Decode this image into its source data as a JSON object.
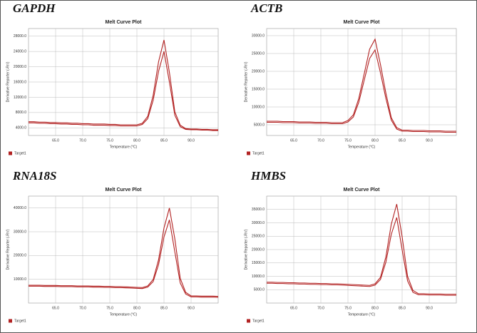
{
  "chart_data": [
    {
      "type": "line",
      "panel_label": "GAPDH",
      "title": "Melt Curve Plot",
      "x_label": "Temperature (°C)",
      "y_label": "Derivative Reporter (-Rn')",
      "x": [
        60,
        61,
        62,
        63,
        64,
        65,
        66,
        67,
        68,
        69,
        70,
        71,
        72,
        73,
        74,
        75,
        76,
        77,
        78,
        79,
        80,
        81,
        82,
        83,
        84,
        85,
        86,
        87,
        88,
        89,
        90,
        91,
        92,
        93,
        94,
        95
      ],
      "series": [
        {
          "name": "Target1",
          "color": "#b22222",
          "values": [
            5600,
            5600,
            5500,
            5500,
            5400,
            5400,
            5300,
            5300,
            5200,
            5200,
            5100,
            5100,
            5000,
            5000,
            5000,
            4900,
            4900,
            4800,
            4800,
            4800,
            4800,
            5200,
            7000,
            12500,
            21300,
            27000,
            18500,
            8200,
            4700,
            3800,
            3700,
            3700,
            3600,
            3600,
            3500,
            3500
          ]
        },
        {
          "color": "#b22222",
          "values": [
            5300,
            5300,
            5200,
            5200,
            5100,
            5100,
            5000,
            5000,
            4900,
            4900,
            4800,
            4800,
            4700,
            4700,
            4700,
            4600,
            4600,
            4500,
            4500,
            4500,
            4500,
            4900,
            6400,
            11200,
            18800,
            24000,
            16000,
            7300,
            4300,
            3600,
            3500,
            3500,
            3400,
            3400,
            3300,
            3300
          ]
        }
      ],
      "xlim": [
        60,
        95
      ],
      "xticks": [
        {
          "value": 65,
          "label": "65.0"
        },
        {
          "value": 70,
          "label": "70.0"
        },
        {
          "value": 75,
          "label": "75.0"
        },
        {
          "value": 80,
          "label": "80.0"
        },
        {
          "value": 85,
          "label": "85.0"
        },
        {
          "value": 90,
          "label": "90.0"
        }
      ],
      "ylim": [
        2000,
        30000
      ],
      "yticks": [
        {
          "value": 4000,
          "label": "4000.0"
        },
        {
          "value": 8000,
          "label": "8000.0"
        },
        {
          "value": 12000,
          "label": "12000.0"
        },
        {
          "value": 16000,
          "label": "16000.0"
        },
        {
          "value": 20000,
          "label": "20000.0"
        },
        {
          "value": 24000,
          "label": "24000.0"
        },
        {
          "value": 28000,
          "label": "28000.0"
        }
      ],
      "grid": true
    },
    {
      "type": "line",
      "panel_label": "ACTB",
      "title": "Melt Curve Plot",
      "x_label": "Temperature (°C)",
      "y_label": "Derivative Reporter (-Rn')",
      "x": [
        60,
        61,
        62,
        63,
        64,
        65,
        66,
        67,
        68,
        69,
        70,
        71,
        72,
        73,
        74,
        75,
        76,
        77,
        78,
        79,
        80,
        81,
        82,
        83,
        84,
        85,
        86,
        87,
        88,
        89,
        90,
        91,
        92,
        93,
        94,
        95
      ],
      "series": [
        {
          "name": "Target1",
          "color": "#b22222",
          "values": [
            6000,
            6000,
            6000,
            5900,
            5900,
            5900,
            5800,
            5800,
            5800,
            5700,
            5700,
            5700,
            5600,
            5600,
            5600,
            6200,
            7800,
            12400,
            19300,
            26200,
            29000,
            21900,
            13900,
            7000,
            4200,
            3500,
            3500,
            3400,
            3400,
            3400,
            3300,
            3300,
            3300,
            3200,
            3200,
            3200
          ]
        },
        {
          "color": "#b22222",
          "values": [
            5700,
            5700,
            5700,
            5600,
            5600,
            5600,
            5500,
            5500,
            5500,
            5400,
            5400,
            5400,
            5300,
            5300,
            5300,
            5800,
            7200,
            11300,
            17500,
            23600,
            26000,
            19600,
            12400,
            6300,
            3800,
            3200,
            3200,
            3100,
            3100,
            3100,
            3000,
            3000,
            3000,
            2900,
            2900,
            2900
          ]
        }
      ],
      "xlim": [
        60,
        95
      ],
      "xticks": [
        {
          "value": 65,
          "label": "65.0"
        },
        {
          "value": 70,
          "label": "70.0"
        },
        {
          "value": 75,
          "label": "75.0"
        },
        {
          "value": 80,
          "label": "80.0"
        },
        {
          "value": 85,
          "label": "85.0"
        },
        {
          "value": 90,
          "label": "90.0"
        }
      ],
      "ylim": [
        2000,
        32000
      ],
      "yticks": [
        {
          "value": 5000,
          "label": "5000.0"
        },
        {
          "value": 10000,
          "label": "10000.0"
        },
        {
          "value": 15000,
          "label": "15000.0"
        },
        {
          "value": 20000,
          "label": "20000.0"
        },
        {
          "value": 25000,
          "label": "25000.0"
        },
        {
          "value": 30000,
          "label": "30000.0"
        }
      ],
      "grid": true
    },
    {
      "type": "line",
      "panel_label": "RNA18S",
      "title": "Melt Curve Plot",
      "x_label": "Temperature (°C)",
      "y_label": "Derivative Reporter (-Rn')",
      "x": [
        60,
        61,
        62,
        63,
        64,
        65,
        66,
        67,
        68,
        69,
        70,
        71,
        72,
        73,
        74,
        75,
        76,
        77,
        78,
        79,
        80,
        81,
        82,
        83,
        84,
        85,
        86,
        87,
        88,
        89,
        90,
        91,
        92,
        93,
        94,
        95
      ],
      "series": [
        {
          "name": "Target1",
          "color": "#b22222",
          "values": [
            7500,
            7500,
            7500,
            7400,
            7400,
            7400,
            7300,
            7300,
            7300,
            7200,
            7200,
            7200,
            7100,
            7100,
            7000,
            7000,
            6900,
            6900,
            6800,
            6700,
            6600,
            6500,
            7200,
            9900,
            18200,
            31600,
            40000,
            27000,
            10400,
            4500,
            3000,
            3000,
            2900,
            2900,
            2900,
            2800
          ]
        },
        {
          "color": "#b22222",
          "values": [
            7100,
            7100,
            7100,
            7000,
            7000,
            7000,
            6900,
            6900,
            6900,
            6800,
            6800,
            6800,
            6700,
            6700,
            6600,
            6600,
            6500,
            6500,
            6400,
            6300,
            6200,
            6100,
            6700,
            9000,
            16200,
            27800,
            35000,
            21500,
            8400,
            3800,
            2600,
            2600,
            2500,
            2500,
            2500,
            2400
          ]
        }
      ],
      "xlim": [
        60,
        95
      ],
      "xticks": [
        {
          "value": 65,
          "label": "65.0"
        },
        {
          "value": 70,
          "label": "70.0"
        },
        {
          "value": 75,
          "label": "75.0"
        },
        {
          "value": 80,
          "label": "80.0"
        },
        {
          "value": 85,
          "label": "85.0"
        },
        {
          "value": 90,
          "label": "90.0"
        }
      ],
      "ylim": [
        0,
        45000
      ],
      "yticks": [
        {
          "value": 10000,
          "label": "10000.0"
        },
        {
          "value": 20000,
          "label": "20000.0"
        },
        {
          "value": 30000,
          "label": "30000.0"
        },
        {
          "value": 40000,
          "label": "40000.0"
        }
      ],
      "grid": true
    },
    {
      "type": "line",
      "panel_label": "HMBS",
      "title": "Melt Curve Plot",
      "x_label": "Temperature (°C)",
      "y_label": "Derivative Reporter (-Rn')",
      "x": [
        60,
        61,
        62,
        63,
        64,
        65,
        66,
        67,
        68,
        69,
        70,
        71,
        72,
        73,
        74,
        75,
        76,
        77,
        78,
        79,
        80,
        81,
        82,
        83,
        84,
        85,
        86,
        87,
        88,
        89,
        90,
        91,
        92,
        93,
        94,
        95
      ],
      "series": [
        {
          "name": "Target1",
          "color": "#b22222",
          "values": [
            7800,
            7800,
            7700,
            7700,
            7600,
            7600,
            7500,
            7500,
            7400,
            7400,
            7300,
            7300,
            7200,
            7200,
            7100,
            7000,
            6900,
            6800,
            6700,
            6600,
            7200,
            9600,
            17300,
            29500,
            37000,
            24800,
            10000,
            4700,
            3500,
            3500,
            3400,
            3400,
            3400,
            3300,
            3300,
            3300
          ]
        },
        {
          "color": "#b22222",
          "values": [
            7400,
            7400,
            7300,
            7300,
            7200,
            7200,
            7100,
            7100,
            7000,
            7000,
            6900,
            6900,
            6800,
            6800,
            6700,
            6600,
            6500,
            6400,
            6300,
            6200,
            6700,
            8800,
            15300,
            25700,
            32000,
            19900,
            8300,
            4000,
            3100,
            3100,
            3000,
            3000,
            3000,
            2900,
            2900,
            2900
          ]
        }
      ],
      "xlim": [
        60,
        95
      ],
      "xticks": [
        {
          "value": 65,
          "label": "65.0"
        },
        {
          "value": 70,
          "label": "70.0"
        },
        {
          "value": 75,
          "label": "75.0"
        },
        {
          "value": 80,
          "label": "80.0"
        },
        {
          "value": 85,
          "label": "85.0"
        },
        {
          "value": 90,
          "label": "90.0"
        }
      ],
      "ylim": [
        0,
        40000
      ],
      "yticks": [
        {
          "value": 5000,
          "label": "5000.0"
        },
        {
          "value": 10000,
          "label": "10000.0"
        },
        {
          "value": 15000,
          "label": "15000.0"
        },
        {
          "value": 20000,
          "label": "20000.0"
        },
        {
          "value": 25000,
          "label": "25000.0"
        },
        {
          "value": 30000,
          "label": "30000.0"
        },
        {
          "value": 35000,
          "label": "35000.0"
        }
      ],
      "grid": true
    }
  ]
}
